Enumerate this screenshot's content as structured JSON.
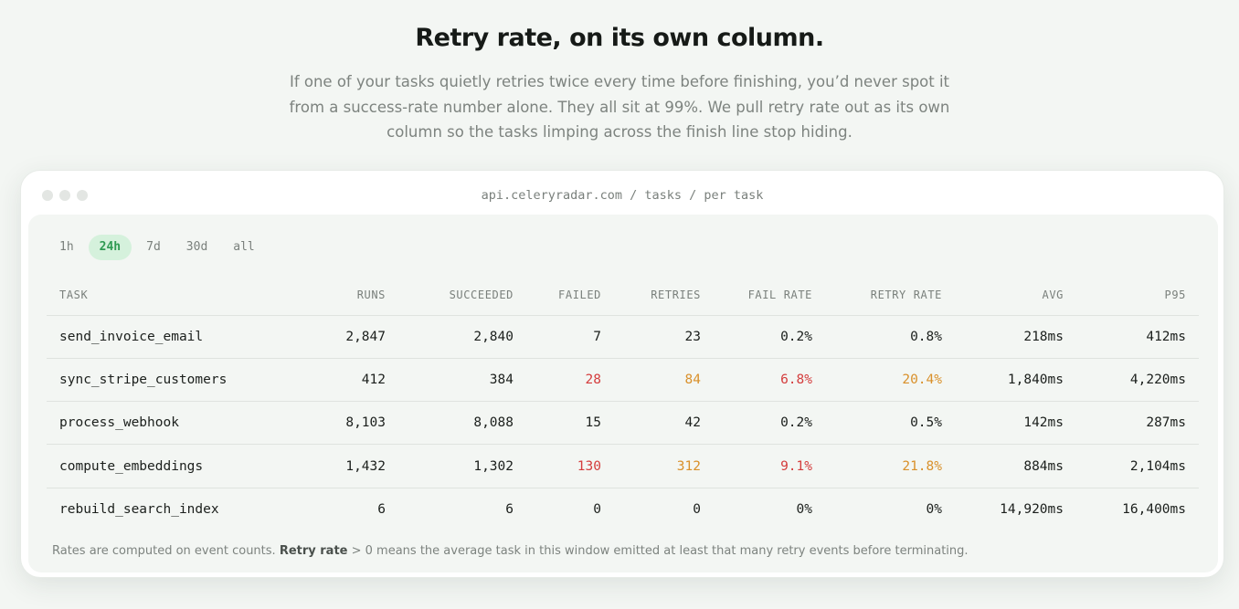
{
  "section": {
    "title": "Retry rate, on its own column.",
    "description": "If one of your tasks quietly retries twice every time before finishing, you’d never spot it from a success-rate number alone. They all sit at 99%. We pull retry rate out as its own column so the tasks limping across the finish line stop hiding."
  },
  "window": {
    "url": "api.celeryradar.com / tasks / per task"
  },
  "ranges": [
    "1h",
    "24h",
    "7d",
    "30d",
    "all"
  ],
  "selected_range": "24h",
  "table": {
    "columns": [
      "TASK",
      "RUNS",
      "SUCCEEDED",
      "FAILED",
      "RETRIES",
      "FAIL RATE",
      "RETRY RATE",
      "AVG",
      "P95"
    ],
    "rows": [
      {
        "task": "send_invoice_email",
        "runs": "2,847",
        "succeeded": "2,840",
        "failed": "7",
        "retries": "23",
        "fail_rate": "0.2%",
        "retry_rate": "0.8%",
        "avg": "218ms",
        "p95": "412ms"
      },
      {
        "task": "sync_stripe_customers",
        "runs": "412",
        "succeeded": "384",
        "failed": "28",
        "retries": "84",
        "fail_rate": "6.8%",
        "retry_rate": "20.4%",
        "avg": "1,840ms",
        "p95": "4,220ms"
      },
      {
        "task": "process_webhook",
        "runs": "8,103",
        "succeeded": "8,088",
        "failed": "15",
        "retries": "42",
        "fail_rate": "0.2%",
        "retry_rate": "0.5%",
        "avg": "142ms",
        "p95": "287ms"
      },
      {
        "task": "compute_embeddings",
        "runs": "1,432",
        "succeeded": "1,302",
        "failed": "130",
        "retries": "312",
        "fail_rate": "9.1%",
        "retry_rate": "21.8%",
        "avg": "884ms",
        "p95": "2,104ms"
      },
      {
        "task": "rebuild_search_index",
        "runs": "6",
        "succeeded": "6",
        "failed": "0",
        "retries": "0",
        "fail_rate": "0%",
        "retry_rate": "0%",
        "avg": "14,920ms",
        "p95": "16,400ms"
      }
    ]
  },
  "footnote": {
    "prefix": "Rates are computed on event counts. ",
    "bold": "Retry rate",
    "suffix": " > 0 means the average task in this window emitted at least that many retry events before terminating."
  },
  "colors": {
    "accent_green": "#2f9a52",
    "alert_red": "#d43c3c",
    "warn_amber": "#d9902a"
  }
}
